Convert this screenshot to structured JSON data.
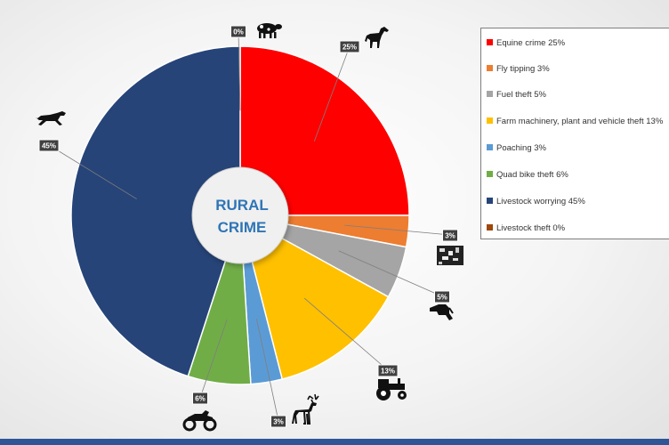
{
  "chart_data": {
    "type": "pie",
    "center_label_lines": [
      "RURAL",
      "CRIME"
    ],
    "slices": [
      {
        "name": "Equine crime",
        "value": 25,
        "label": "25%",
        "color": "#ff0000",
        "icon": "horse-icon"
      },
      {
        "name": "Fly tipping",
        "value": 3,
        "label": "3%",
        "color": "#ed7d31",
        "icon": "rubbish-pile-icon"
      },
      {
        "name": "Fuel theft",
        "value": 5,
        "label": "5%",
        "color": "#a5a5a5",
        "icon": "fuel-nozzle-icon"
      },
      {
        "name": "Farm machinery, plant and vehicle theft",
        "value": 13,
        "label": "13%",
        "color": "#ffc000",
        "icon": "tractor-icon"
      },
      {
        "name": "Poaching",
        "value": 3,
        "label": "3%",
        "color": "#5b9bd5",
        "icon": "deer-icon"
      },
      {
        "name": "Quad bike theft",
        "value": 6,
        "label": "6%",
        "color": "#70ad47",
        "icon": "quad-bike-icon"
      },
      {
        "name": "Livestock worrying",
        "value": 45,
        "label": "45%",
        "color": "#264478",
        "icon": "running-dog-icon"
      },
      {
        "name": "Livestock theft",
        "value": 0,
        "label": "0%",
        "color": "#9e480e",
        "icon": "cow-icon"
      }
    ],
    "legend": {
      "placement": "right",
      "entries": [
        "Equine crime 25%",
        "Fly tipping 3%",
        "Fuel theft 5%",
        "Farm machinery, plant and vehicle theft 13%",
        "Poaching 3%",
        "Quad bike theft 6%",
        "Livestock worrying 45%",
        "Livestock theft 0%"
      ]
    }
  }
}
